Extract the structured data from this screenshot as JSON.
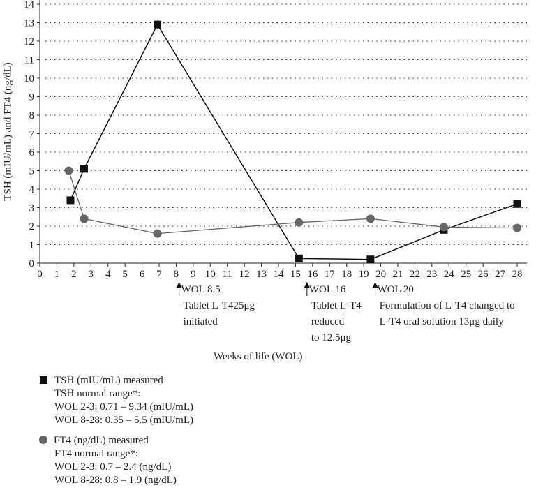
{
  "chart_data": {
    "type": "line",
    "title": "",
    "xlabel": "Weeks of life (WOL)",
    "ylabel": "TSH (mIU/mL) and FT4 (ng/dL)",
    "xlim": [
      0,
      28
    ],
    "ylim": [
      0,
      14
    ],
    "xticks": [
      "0",
      "1",
      "2",
      "3",
      "4",
      "5",
      "6",
      "7",
      "8",
      "9",
      "10",
      "11",
      "12",
      "13",
      "14",
      "15",
      "16",
      "17",
      "18",
      "19",
      "20",
      "21",
      "22",
      "23",
      "24",
      "25",
      "26",
      "27",
      "28"
    ],
    "yticks": [
      "0",
      "1",
      "2",
      "3",
      "4",
      "5",
      "6",
      "7",
      "8",
      "9",
      "10",
      "11",
      "12",
      "13",
      "14"
    ],
    "grid": "horizontal dotted",
    "series": [
      {
        "name": "TSH (mIU/mL) measured",
        "color": "#111111",
        "marker": "square",
        "x": [
          1.8,
          2.6,
          6.9,
          15.2,
          19.4,
          23.7,
          28
        ],
        "y": [
          3.4,
          5.1,
          12.9,
          0.25,
          0.2,
          1.8,
          3.2
        ]
      },
      {
        "name": "FT4 (ng/dL) measured",
        "color": "#666666",
        "marker": "circle",
        "x": [
          1.7,
          2.6,
          6.9,
          15.2,
          19.4,
          23.7,
          28
        ],
        "y": [
          5.0,
          2.4,
          1.6,
          2.2,
          2.4,
          1.95,
          1.9
        ]
      }
    ],
    "annotations": [
      {
        "x": 8.5,
        "lines": [
          "WOL 8.5",
          "Tablet L-T425μg",
          "initiated"
        ]
      },
      {
        "x": 16,
        "lines": [
          "WOL 16",
          "Tablet L-T4",
          "reduced",
          "to 12.5μg"
        ]
      },
      {
        "x": 20,
        "lines": [
          "WOL 20",
          "Formulation of L-T4 changed to",
          "L-T4 oral solution 13μg daily"
        ]
      }
    ],
    "legend": {
      "placement": "bottom-left",
      "tsh": [
        "TSH (mIU/mL) measured",
        "TSH normal range*:",
        "WOL 2-3: 0.71 – 9.34 (mIU/mL)",
        "WOL 8-28: 0.35 – 5.5 (mIU/mL)"
      ],
      "ft4": [
        "FT4 (ng/dL) measured",
        "FT4 normal range*:",
        "WOL 2-3: 0.7 – 2.4 (ng/dL)",
        "WOL 8-28: 0.8 – 1.9 (ng/dL)"
      ]
    }
  }
}
